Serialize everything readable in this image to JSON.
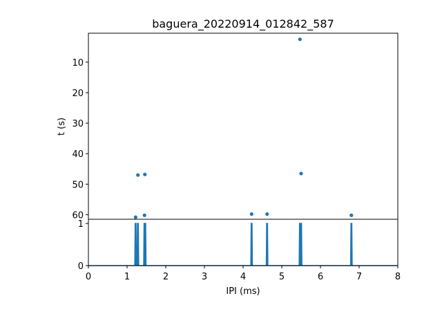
{
  "chart_data": [
    {
      "type": "scatter",
      "title": "baguera_20220914_012842_587",
      "xlabel": "",
      "ylabel": "t (s)",
      "xlim": [
        0,
        8
      ],
      "ylim": [
        61.5,
        0.5
      ],
      "y_inverted": true,
      "yticks": [
        10,
        20,
        30,
        40,
        50,
        60
      ],
      "color": "#1f77b4",
      "points": [
        {
          "x": 5.47,
          "y": 2.5
        },
        {
          "x": 1.28,
          "y": 47.0
        },
        {
          "x": 1.46,
          "y": 46.8
        },
        {
          "x": 5.5,
          "y": 46.5
        },
        {
          "x": 1.22,
          "y": 60.8
        },
        {
          "x": 1.45,
          "y": 60.2
        },
        {
          "x": 4.22,
          "y": 59.8
        },
        {
          "x": 4.62,
          "y": 59.8
        },
        {
          "x": 6.8,
          "y": 60.2
        }
      ]
    },
    {
      "type": "line",
      "title": "",
      "xlabel": "IPI (ms)",
      "ylabel": "",
      "xlim": [
        0,
        8
      ],
      "ylim": [
        0,
        1.1
      ],
      "xticks": [
        0,
        1,
        2,
        3,
        4,
        5,
        6,
        7,
        8
      ],
      "yticks": [
        0,
        1
      ],
      "color": "#1f77b4",
      "spikes": [
        1.22,
        1.28,
        1.45,
        1.47,
        4.22,
        4.62,
        5.47,
        5.5,
        6.8
      ],
      "spike_height": 1
    }
  ]
}
